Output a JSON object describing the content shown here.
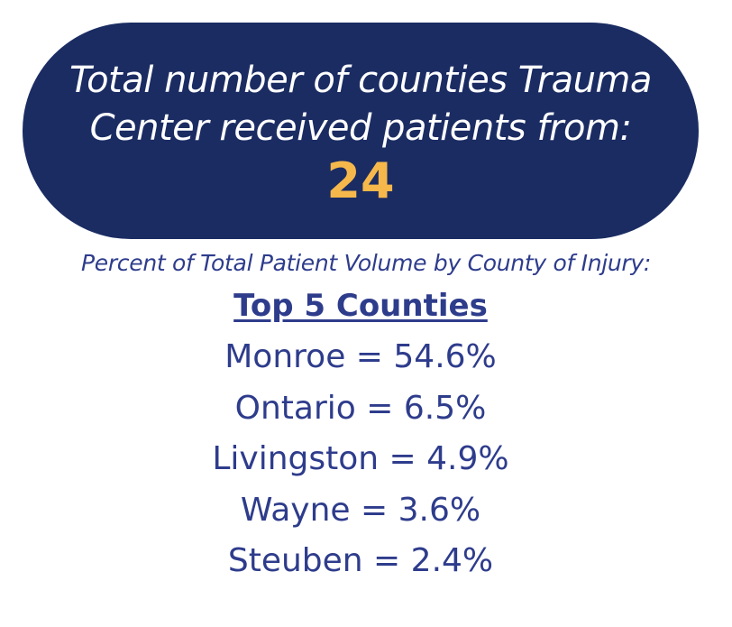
{
  "banner": {
    "line1": "Total number of counties Trauma",
    "line2": "Center received patients from:",
    "count": "24"
  },
  "subtitle": "Percent of Total Patient Volume by County of Injury:",
  "top_counties": {
    "heading": "Top 5 Counties",
    "items": [
      {
        "text": "Monroe = 54.6%"
      },
      {
        "text": "Ontario = 6.5%"
      },
      {
        "text": "Livingston = 4.9%"
      },
      {
        "text": "Wayne = 3.6%"
      },
      {
        "text": "Steuben = 2.4%"
      }
    ]
  },
  "colors": {
    "banner_background": "#1b2c63",
    "banner_text": "#ffffff",
    "count_highlight": "#f7b84b",
    "body_text": "#2e3c8c"
  }
}
